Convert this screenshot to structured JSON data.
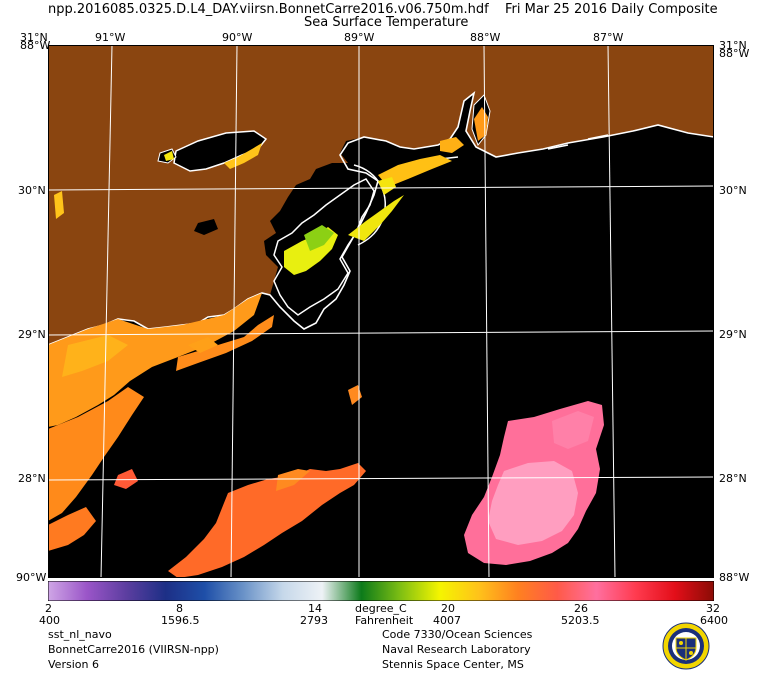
{
  "header": {
    "filename": "npp.2016085.0325.D.L4_DAY.viirsn.BonnetCarre2016.v06.750m.hdf",
    "date": "Fri Mar 25 2016 Daily Composite",
    "product": "Sea Surface Temperature"
  },
  "map": {
    "longitude_labels": [
      "91°W",
      "90°W",
      "89°W",
      "88°W",
      "87°W"
    ],
    "latitude_labels": [
      "30°N",
      "29°N",
      "28°N"
    ],
    "corner_labels": {
      "top_left_1": "31°N",
      "top_left_2": "88°W",
      "top_right_1": "31°N",
      "top_right_2": "88°W",
      "bottom_left": "90°W",
      "bottom_right": "88°W"
    },
    "colors": {
      "land": "#8a4510",
      "ocean": "#000000",
      "coast": "#ffffff",
      "grid": "#ffffff"
    }
  },
  "colorbar": {
    "units_c": "degree_C",
    "units_f": "Fahrenheit",
    "celsius_ticks": [
      "2",
      "8",
      "14",
      "20",
      "26",
      "32"
    ],
    "fahrenheit_ticks": [
      "400",
      "1596.5",
      "2793",
      "4007",
      "5203.5",
      "6400"
    ],
    "range_c": [
      2,
      32
    ],
    "stops": [
      "#cfa6e6",
      "#9a55c8",
      "#5c3ea0",
      "#1d2f86",
      "#1e4fa8",
      "#6b93c8",
      "#c6d8ea",
      "#eef2f6",
      "#0c7a1a",
      "#7fbf13",
      "#f5f500",
      "#ffc21a",
      "#ff8020",
      "#ff5a48",
      "#ff6f9f",
      "#ff3b4f",
      "#e30e19",
      "#8a0c05"
    ]
  },
  "footer": {
    "left": [
      "sst_nl_navo",
      "BonnetCarre2016 (VIIRSN-npp)",
      "Version 6"
    ],
    "right": [
      "Code 7330/Ocean Sciences",
      "Naval Research Laboratory",
      "Stennis Space Center, MS"
    ]
  },
  "logo": {
    "name": "naval-research-laboratory-seal"
  }
}
